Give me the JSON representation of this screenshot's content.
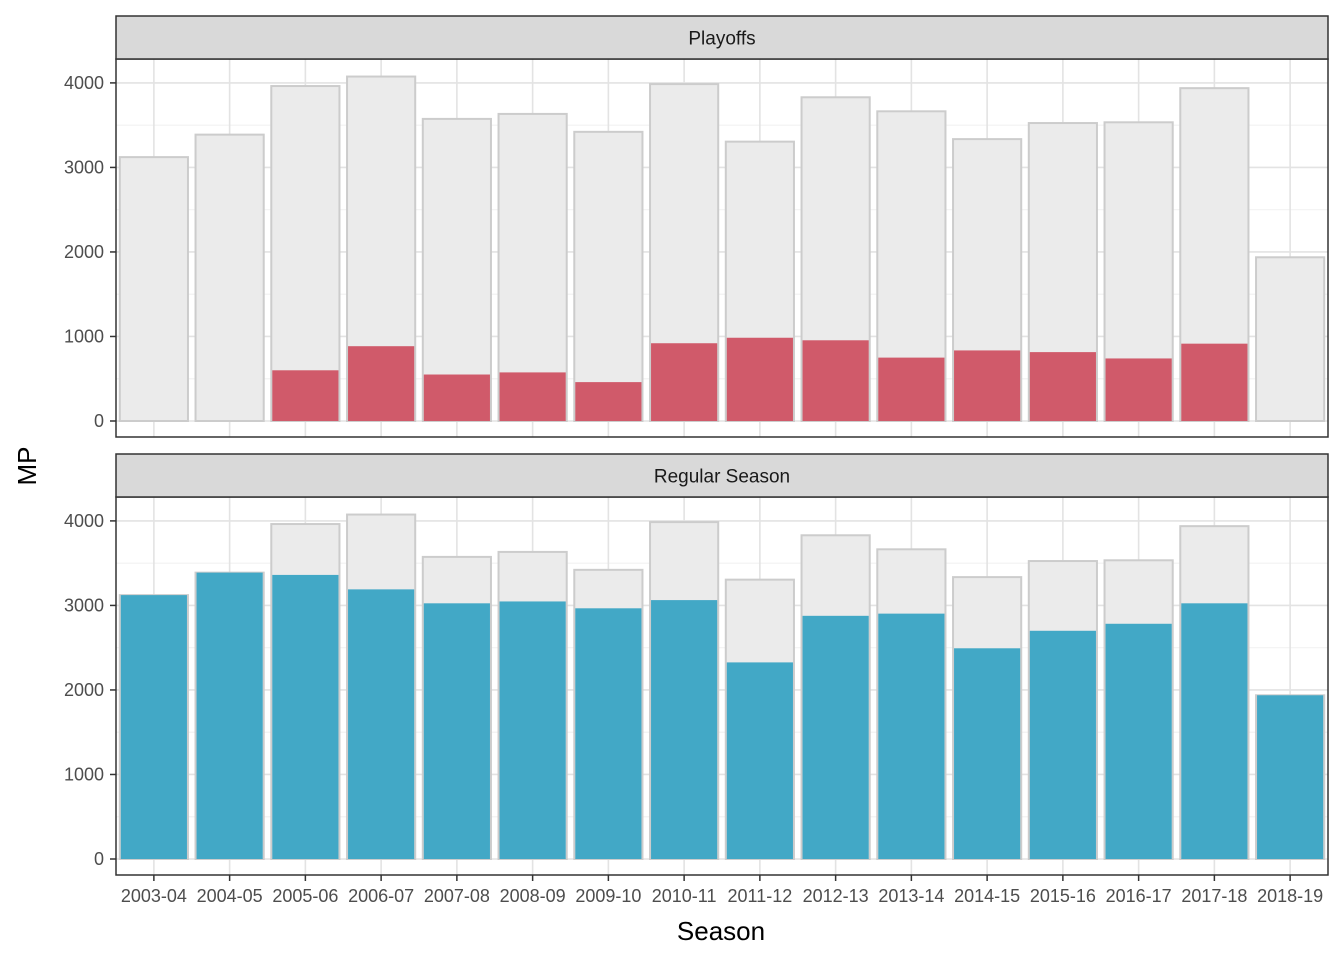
{
  "chart_data": {
    "type": "bar",
    "xlabel": "Season",
    "ylabel": "MP",
    "ylim": [
      0,
      4300
    ],
    "yticks": [
      0,
      1000,
      2000,
      3000,
      4000
    ],
    "grid": true,
    "categories": [
      "2003-04",
      "2004-05",
      "2005-06",
      "2006-07",
      "2007-08",
      "2008-09",
      "2009-10",
      "2010-11",
      "2011-12",
      "2012-13",
      "2013-14",
      "2014-15",
      "2015-16",
      "2016-17",
      "2017-18",
      "2018-19"
    ],
    "background_total": [
      3122,
      3388,
      3963,
      4075,
      3574,
      3633,
      3421,
      3986,
      3305,
      3830,
      3664,
      3335,
      3525,
      3534,
      3938,
      1937
    ],
    "panels": [
      {
        "label": "Playoffs",
        "color": "#d05a6a",
        "values": [
          0,
          0,
          600,
          885,
          550,
          575,
          460,
          920,
          985,
          955,
          750,
          835,
          815,
          740,
          915,
          0
        ]
      },
      {
        "label": "Regular Season",
        "color": "#42a8c6",
        "values": [
          3122,
          3388,
          3361,
          3190,
          3025,
          3047,
          2966,
          3063,
          2326,
          2877,
          2903,
          2493,
          2700,
          2783,
          3025,
          1937
        ]
      }
    ],
    "background_color": "#ebebeb",
    "background_stroke": "#cccccc",
    "legend": "none"
  }
}
